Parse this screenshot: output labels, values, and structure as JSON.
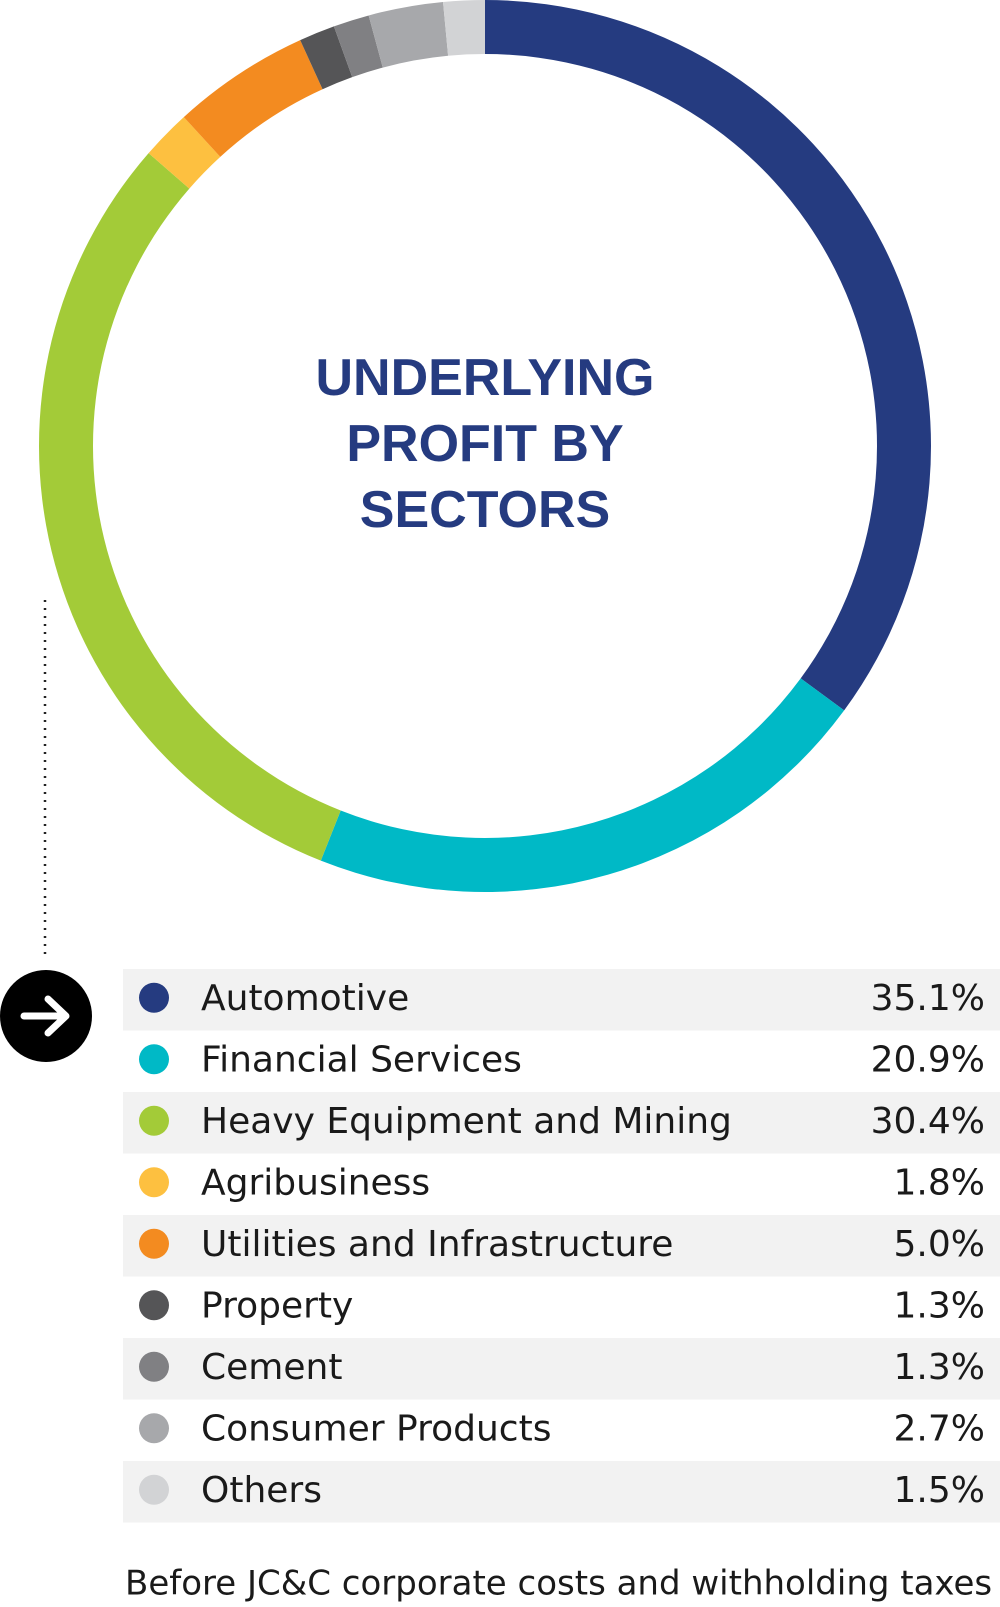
{
  "chart_data": {
    "type": "donut",
    "title": "UNDERLYING PROFIT BY SECTORS",
    "categories": [
      "Automotive",
      "Financial Services",
      "Heavy Equipment and Mining",
      "Agribusiness",
      "Utilities and Infrastructure",
      "Property",
      "Cement",
      "Consumer Products",
      "Others"
    ],
    "values": [
      35.1,
      20.9,
      30.4,
      1.8,
      5.0,
      1.3,
      1.3,
      2.7,
      1.5
    ],
    "value_labels": [
      "35.1%",
      "20.9%",
      "30.4%",
      "1.8%",
      "5.0%",
      "1.3%",
      "1.3%",
      "2.7%",
      "1.5%"
    ],
    "colors": [
      "#253b80",
      "#00b9c6",
      "#a3cb38",
      "#fdc040",
      "#f38b20",
      "#555557",
      "#808083",
      "#a7a8ab",
      "#d2d3d5"
    ],
    "note": "Before JC&C corporate costs and withholding taxes"
  }
}
